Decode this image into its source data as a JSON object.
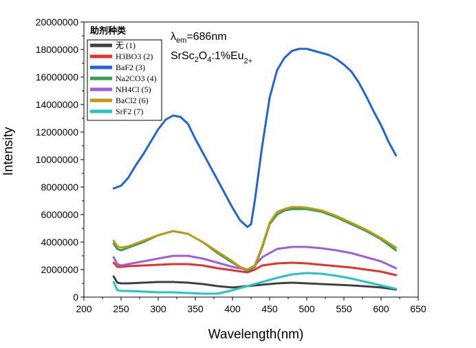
{
  "chart_data": {
    "type": "line",
    "title": "",
    "xlabel": "Wavelength(nm)",
    "ylabel": "Intensity",
    "xlim": [
      200,
      650
    ],
    "ylim": [
      0,
      20000000
    ],
    "xticks": [
      200,
      250,
      300,
      350,
      400,
      450,
      500,
      550,
      600,
      650
    ],
    "yticks": [
      0,
      2000000,
      4000000,
      6000000,
      8000000,
      10000000,
      12000000,
      14000000,
      16000000,
      18000000,
      20000000
    ],
    "grid": false,
    "legend": {
      "title": "助剂种类",
      "position": "top-left"
    },
    "annotation": {
      "lambda": "λ",
      "em": "em",
      "lambda_value": "=686nm",
      "formula_a": "SrSc",
      "formula_b": "2",
      "formula_c": "O",
      "formula_d": "4",
      "formula_e": ":1%Eu",
      "formula_f": "2+"
    },
    "series": [
      {
        "name": "无",
        "tag": "(1)",
        "color": "#404040",
        "x": [
          240,
          245,
          250,
          260,
          280,
          300,
          320,
          340,
          360,
          380,
          400,
          420,
          440,
          460,
          480,
          500,
          520,
          540,
          560,
          580,
          600,
          620
        ],
        "y": [
          1500000,
          1050000,
          1000000,
          1000000,
          1050000,
          1100000,
          1100000,
          1050000,
          950000,
          800000,
          700000,
          800000,
          900000,
          1000000,
          1050000,
          1000000,
          950000,
          900000,
          850000,
          780000,
          700000,
          550000
        ]
      },
      {
        "name": "H3BO3",
        "tag": "(2)",
        "color": "#e8302a",
        "x": [
          240,
          245,
          250,
          260,
          280,
          300,
          320,
          340,
          360,
          380,
          400,
          420,
          430,
          440,
          460,
          480,
          500,
          520,
          540,
          560,
          580,
          600,
          620
        ],
        "y": [
          2500000,
          2200000,
          2200000,
          2250000,
          2300000,
          2350000,
          2400000,
          2400000,
          2300000,
          2100000,
          1950000,
          1800000,
          2000000,
          2300000,
          2450000,
          2500000,
          2450000,
          2350000,
          2250000,
          2150000,
          2000000,
          1850000,
          1600000
        ]
      },
      {
        "name": "BaF2",
        "tag": "(3)",
        "color": "#1f64d8",
        "x": [
          240,
          250,
          260,
          270,
          280,
          290,
          300,
          310,
          320,
          330,
          340,
          350,
          360,
          370,
          380,
          390,
          400,
          410,
          420,
          425,
          430,
          440,
          450,
          460,
          470,
          480,
          490,
          500,
          510,
          520,
          530,
          540,
          550,
          560,
          570,
          580,
          590,
          600,
          610,
          620
        ],
        "y": [
          7900000,
          8100000,
          8700000,
          9600000,
          10400000,
          11300000,
          12200000,
          12900000,
          13200000,
          13100000,
          12600000,
          11500000,
          10500000,
          9500000,
          8500000,
          7500000,
          6500000,
          5600000,
          5100000,
          5300000,
          7000000,
          11000000,
          14500000,
          16500000,
          17400000,
          17900000,
          18050000,
          18050000,
          17900000,
          17750000,
          17600000,
          17300000,
          16900000,
          16400000,
          15600000,
          14600000,
          13500000,
          12500000,
          11300000,
          10300000
        ]
      },
      {
        "name": "Na2CO3",
        "tag": "(4)",
        "color": "#2e9e58",
        "x": [
          240,
          245,
          250,
          260,
          280,
          300,
          320,
          340,
          360,
          380,
          400,
          410,
          420,
          430,
          440,
          450,
          460,
          470,
          480,
          490,
          500,
          520,
          540,
          560,
          580,
          600,
          620
        ],
        "y": [
          3900000,
          3500000,
          3400000,
          3600000,
          4000000,
          4500000,
          4800000,
          4600000,
          4000000,
          3200000,
          2500000,
          2200000,
          1900000,
          2200000,
          3600000,
          5300000,
          6000000,
          6300000,
          6400000,
          6400000,
          6400000,
          6200000,
          5800000,
          5300000,
          4800000,
          4200000,
          3400000
        ]
      },
      {
        "name": "NH4Cl",
        "tag": "(5)",
        "color": "#a05cdc",
        "x": [
          240,
          245,
          250,
          260,
          280,
          300,
          320,
          340,
          360,
          380,
          400,
          420,
          430,
          440,
          460,
          480,
          500,
          520,
          540,
          560,
          580,
          600,
          620
        ],
        "y": [
          2900000,
          2400000,
          2300000,
          2400000,
          2600000,
          2800000,
          3000000,
          3000000,
          2800000,
          2500000,
          2200000,
          2000000,
          2300000,
          2900000,
          3500000,
          3650000,
          3650000,
          3550000,
          3400000,
          3200000,
          2900000,
          2600000,
          2100000
        ]
      },
      {
        "name": "BaCl2",
        "tag": "(6)",
        "color": "#c09a10",
        "x": [
          240,
          245,
          250,
          260,
          280,
          300,
          320,
          340,
          360,
          380,
          400,
          410,
          420,
          430,
          440,
          450,
          460,
          470,
          480,
          490,
          500,
          520,
          540,
          560,
          580,
          600,
          620
        ],
        "y": [
          4100000,
          3700000,
          3600000,
          3700000,
          4100000,
          4500000,
          4800000,
          4600000,
          4000000,
          3300000,
          2600000,
          2200000,
          2000000,
          2300000,
          3700000,
          5400000,
          6200000,
          6400000,
          6550000,
          6550000,
          6500000,
          6300000,
          5900000,
          5400000,
          4900000,
          4300000,
          3600000
        ]
      },
      {
        "name": "SrF2",
        "tag": "(7)",
        "color": "#22c4c8",
        "x": [
          240,
          245,
          250,
          260,
          280,
          300,
          320,
          340,
          360,
          380,
          400,
          420,
          440,
          460,
          480,
          500,
          520,
          540,
          560,
          580,
          600,
          620
        ],
        "y": [
          1100000,
          500000,
          450000,
          450000,
          400000,
          350000,
          350000,
          300000,
          250000,
          250000,
          500000,
          800000,
          1100000,
          1400000,
          1650000,
          1750000,
          1700000,
          1550000,
          1350000,
          1100000,
          850000,
          600000
        ]
      }
    ]
  }
}
